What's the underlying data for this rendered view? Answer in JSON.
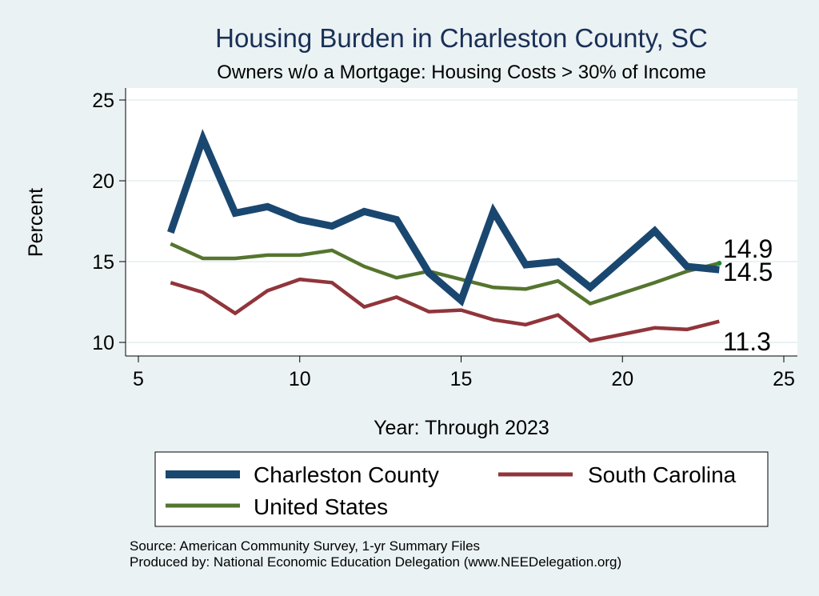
{
  "chart_data": {
    "type": "line",
    "title": "Housing Burden in Charleston County, SC",
    "subtitle": "Owners w/o a Mortgage: Housing Costs > 30% of Income",
    "xlabel": "Year: Through 2023",
    "ylabel": "Percent",
    "xlim": [
      5,
      25
    ],
    "ylim": [
      10,
      25
    ],
    "xticks": [
      5,
      10,
      15,
      20,
      25
    ],
    "yticks": [
      10,
      15,
      20,
      25
    ],
    "grid": true,
    "x": [
      6,
      7,
      8,
      9,
      10,
      11,
      12,
      13,
      14,
      15,
      16,
      17,
      18,
      19,
      21,
      22,
      23
    ],
    "series": [
      {
        "name": "Charleston County",
        "color": "#1a476f",
        "values": [
          16.8,
          22.6,
          18.0,
          18.4,
          17.6,
          17.2,
          18.1,
          17.6,
          14.3,
          12.6,
          18.1,
          14.8,
          15.0,
          13.4,
          16.9,
          14.7,
          14.5
        ],
        "end_label": "14.5"
      },
      {
        "name": "South Carolina",
        "color": "#90353b",
        "values": [
          13.7,
          13.1,
          11.8,
          13.2,
          13.9,
          13.7,
          12.2,
          12.8,
          11.9,
          12.0,
          11.4,
          11.1,
          11.7,
          10.1,
          10.9,
          10.8,
          11.3
        ],
        "end_label": "11.3"
      },
      {
        "name": "United States",
        "color": "#55752f",
        "values": [
          16.1,
          15.2,
          15.2,
          15.4,
          15.4,
          15.7,
          14.7,
          14.0,
          14.4,
          13.9,
          13.4,
          13.3,
          13.8,
          12.4,
          13.7,
          14.4,
          14.9
        ],
        "end_label": "14.9"
      }
    ],
    "legend": [
      "Charleston County",
      "South Carolina",
      "United States"
    ],
    "legend_position": "bottom"
  },
  "footer": {
    "source": "Source: American Community Survey, 1-yr Summary Files",
    "produced_by": "Produced by: National Economic Education Delegation (www.NEEDelegation.org)"
  }
}
